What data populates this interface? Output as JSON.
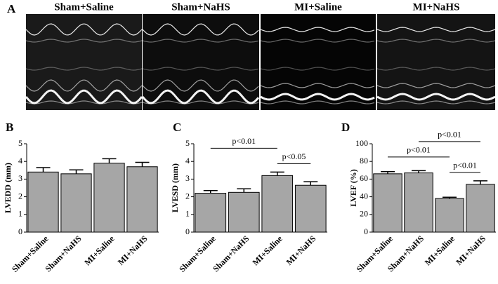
{
  "panel_a": {
    "label": "A",
    "titles": [
      "Sham+Saline",
      "Sham+NaHS",
      "MI+Saline",
      "MI+NaHS"
    ]
  },
  "chart_data": [
    {
      "type": "bar",
      "label": "B",
      "ylabel": "LVEDD (mm)",
      "color": "#a6a6a6",
      "categories": [
        "Sham+Saline",
        "Sham+NaHS",
        "MI+Saline",
        "MI+NaHS"
      ],
      "values": [
        3.4,
        3.3,
        3.9,
        3.7
      ],
      "errors": [
        0.25,
        0.22,
        0.25,
        0.25
      ],
      "ylim": [
        0,
        5
      ],
      "yticks": [
        0,
        1,
        2,
        3,
        4,
        5
      ],
      "brackets": []
    },
    {
      "type": "bar",
      "label": "C",
      "ylabel": "LVESD (mm)",
      "color": "#a6a6a6",
      "categories": [
        "Sham+Saline",
        "Sham+NaHS",
        "MI+Saline",
        "MI+NaHS"
      ],
      "values": [
        2.2,
        2.25,
        3.2,
        2.65
      ],
      "errors": [
        0.15,
        0.2,
        0.2,
        0.2
      ],
      "ylim": [
        0,
        5
      ],
      "yticks": [
        0,
        1,
        2,
        3,
        4,
        5
      ],
      "brackets": [
        {
          "text": "p<0.01",
          "between": [
            "Sham+Saline",
            "MI+Saline"
          ]
        },
        {
          "text": "p<0.05",
          "between": [
            "MI+Saline",
            "MI+NaHS"
          ]
        }
      ]
    },
    {
      "type": "bar",
      "label": "D",
      "ylabel": "LVEF (%)",
      "color": "#a6a6a6",
      "categories": [
        "Sham+Saline",
        "Sham+NaHS",
        "MI+Saline",
        "MI+NaHS"
      ],
      "values": [
        66,
        67,
        38,
        54
      ],
      "errors": [
        2.5,
        2.5,
        1.5,
        4
      ],
      "ylim": [
        0,
        100
      ],
      "yticks": [
        0,
        20,
        40,
        60,
        80,
        100
      ],
      "brackets": [
        {
          "text": "p<0.01",
          "between": [
            "Sham+Saline",
            "MI+Saline"
          ]
        },
        {
          "text": "p<0.01",
          "between": [
            "Sham+NaHS",
            "MI+NaHS"
          ]
        },
        {
          "text": "p<0.01",
          "between": [
            "MI+Saline",
            "MI+NaHS"
          ]
        }
      ]
    }
  ]
}
